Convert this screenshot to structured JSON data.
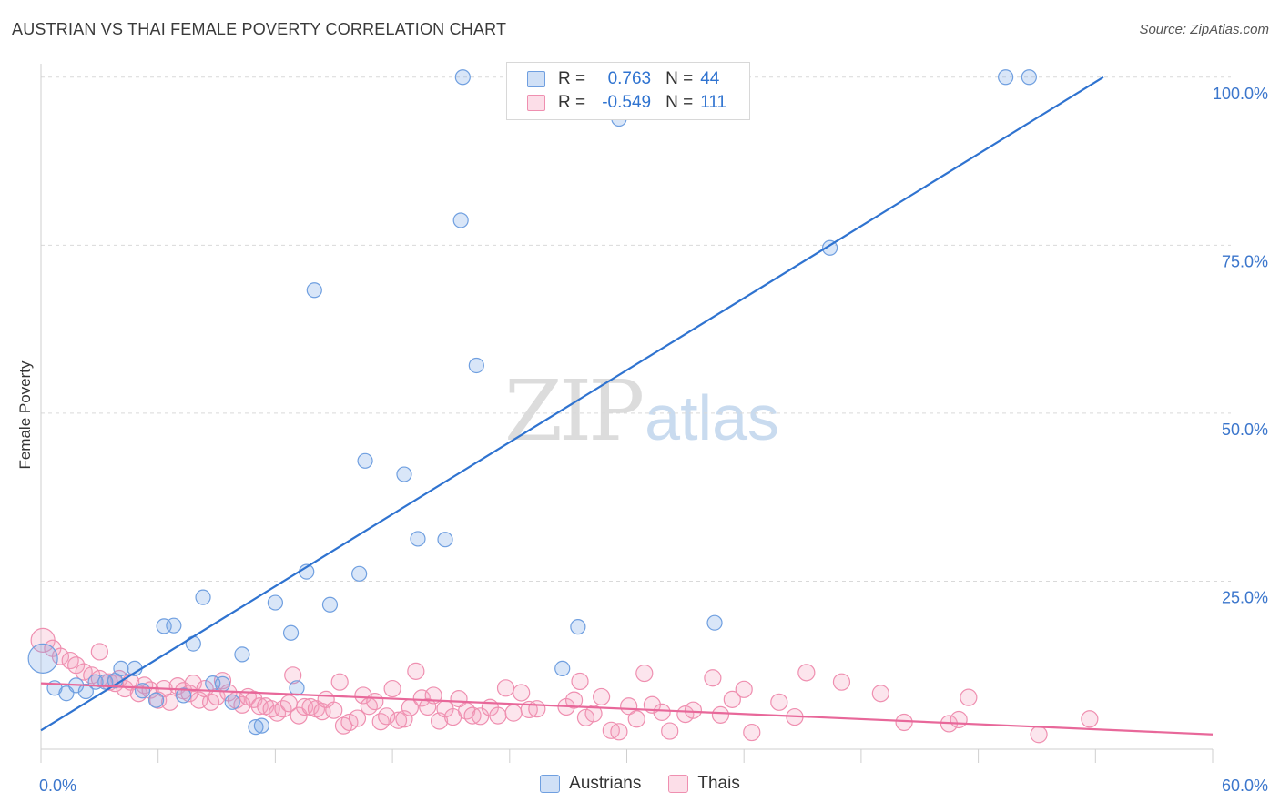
{
  "title": "AUSTRIAN VS THAI FEMALE POVERTY CORRELATION CHART",
  "source": "Source: ZipAtlas.com",
  "colors": {
    "austrians_fill": "rgba(120,165,230,0.28)",
    "austrians_stroke": "#6f9fe0",
    "austrians_line": "#2f73d0",
    "thais_fill": "rgba(245,160,190,0.28)",
    "thais_stroke": "#ef8fb0",
    "thais_line": "#e8689a",
    "tick_label": "#3b76cc",
    "grid": "#d9d9d9"
  },
  "legend": {
    "r_label": "R =",
    "n_label": "N =",
    "rows": [
      {
        "r": "0.763",
        "n": "44"
      },
      {
        "r": "-0.549",
        "n": "111"
      }
    ]
  },
  "watermark": {
    "zip": "ZIP",
    "atlas": "atlas"
  },
  "chart_data": {
    "type": "scatter",
    "title": "AUSTRIAN VS THAI FEMALE POVERTY CORRELATION CHART",
    "xlabel": "",
    "ylabel": "Female Poverty",
    "xlim": [
      0,
      60
    ],
    "ylim": [
      0,
      102
    ],
    "x_tick_labels": [
      "0.0%",
      "60.0%"
    ],
    "y_ticks": [
      25,
      50,
      75,
      100
    ],
    "y_tick_labels": [
      "25.0%",
      "50.0%",
      "75.0%",
      "100.0%"
    ],
    "grid": true,
    "legend_position": "top-center",
    "series": [
      {
        "name": "Austrians",
        "r": 0.763,
        "n": 44,
        "trend": [
          [
            0,
            2.8
          ],
          [
            54.4,
            100
          ]
        ],
        "points": [
          [
            0.1,
            13.5
          ],
          [
            0.7,
            9.1
          ],
          [
            1.3,
            8.3
          ],
          [
            1.8,
            9.5
          ],
          [
            2.3,
            8.6
          ],
          [
            2.8,
            10.0
          ],
          [
            3.3,
            10.0
          ],
          [
            3.8,
            10.2
          ],
          [
            4.1,
            12.0
          ],
          [
            4.8,
            12.0
          ],
          [
            5.2,
            8.7
          ],
          [
            5.9,
            7.3
          ],
          [
            6.3,
            18.3
          ],
          [
            6.8,
            18.4
          ],
          [
            7.3,
            8.0
          ],
          [
            7.8,
            15.7
          ],
          [
            8.3,
            22.6
          ],
          [
            8.8,
            9.8
          ],
          [
            9.3,
            9.7
          ],
          [
            9.8,
            7.0
          ],
          [
            10.3,
            14.1
          ],
          [
            11.0,
            3.3
          ],
          [
            11.3,
            3.5
          ],
          [
            12.0,
            21.8
          ],
          [
            12.8,
            17.3
          ],
          [
            13.1,
            9.1
          ],
          [
            13.6,
            26.4
          ],
          [
            14.0,
            68.3
          ],
          [
            14.8,
            21.5
          ],
          [
            16.3,
            26.1
          ],
          [
            16.6,
            42.9
          ],
          [
            18.6,
            40.9
          ],
          [
            19.3,
            31.3
          ],
          [
            20.7,
            31.2
          ],
          [
            21.5,
            78.7
          ],
          [
            21.6,
            100.0
          ],
          [
            22.3,
            57.1
          ],
          [
            26.7,
            12.0
          ],
          [
            27.5,
            18.2
          ],
          [
            29.6,
            93.8
          ],
          [
            34.5,
            18.8
          ],
          [
            40.4,
            74.6
          ],
          [
            49.4,
            100.0
          ],
          [
            50.6,
            100.0
          ]
        ]
      },
      {
        "name": "Thais",
        "r": -0.549,
        "n": 111,
        "trend": [
          [
            0,
            9.8
          ],
          [
            60,
            2.2
          ]
        ],
        "points": [
          [
            0.1,
            16.2
          ],
          [
            0.6,
            15.0
          ],
          [
            1.0,
            13.8
          ],
          [
            1.5,
            13.2
          ],
          [
            1.8,
            12.5
          ],
          [
            2.2,
            11.5
          ],
          [
            2.6,
            11.0
          ],
          [
            3.0,
            10.5
          ],
          [
            3.0,
            14.5
          ],
          [
            3.5,
            10.0
          ],
          [
            3.8,
            9.8
          ],
          [
            4.0,
            10.5
          ],
          [
            4.3,
            9.0
          ],
          [
            4.6,
            10.0
          ],
          [
            5.0,
            8.3
          ],
          [
            5.3,
            9.5
          ],
          [
            5.6,
            8.8
          ],
          [
            6.0,
            7.3
          ],
          [
            6.3,
            9.0
          ],
          [
            6.6,
            7.0
          ],
          [
            7.0,
            9.4
          ],
          [
            7.3,
            8.7
          ],
          [
            7.6,
            8.3
          ],
          [
            7.8,
            9.8
          ],
          [
            8.1,
            7.3
          ],
          [
            8.4,
            9.0
          ],
          [
            8.7,
            7.0
          ],
          [
            9.0,
            7.8
          ],
          [
            9.3,
            10.2
          ],
          [
            9.6,
            8.4
          ],
          [
            10.0,
            7.3
          ],
          [
            10.3,
            6.6
          ],
          [
            10.6,
            7.8
          ],
          [
            10.9,
            7.4
          ],
          [
            11.2,
            6.4
          ],
          [
            11.5,
            6.4
          ],
          [
            11.8,
            6.0
          ],
          [
            12.1,
            5.4
          ],
          [
            12.4,
            6.0
          ],
          [
            12.7,
            6.8
          ],
          [
            12.9,
            11.0
          ],
          [
            13.2,
            5.0
          ],
          [
            13.5,
            6.3
          ],
          [
            13.8,
            6.3
          ],
          [
            14.1,
            6.0
          ],
          [
            14.4,
            5.6
          ],
          [
            14.6,
            7.4
          ],
          [
            15.0,
            5.8
          ],
          [
            15.3,
            10.0
          ],
          [
            15.5,
            3.5
          ],
          [
            15.8,
            4.0
          ],
          [
            16.2,
            4.6
          ],
          [
            16.5,
            8.0
          ],
          [
            16.8,
            6.4
          ],
          [
            17.1,
            7.1
          ],
          [
            17.4,
            4.1
          ],
          [
            17.7,
            4.9
          ],
          [
            18.0,
            9.0
          ],
          [
            18.3,
            4.3
          ],
          [
            18.6,
            4.5
          ],
          [
            18.9,
            6.2
          ],
          [
            19.2,
            11.6
          ],
          [
            19.5,
            7.6
          ],
          [
            19.8,
            6.3
          ],
          [
            20.1,
            8.0
          ],
          [
            20.4,
            4.2
          ],
          [
            20.7,
            6.0
          ],
          [
            21.1,
            4.8
          ],
          [
            21.4,
            7.5
          ],
          [
            21.8,
            5.7
          ],
          [
            22.1,
            5.0
          ],
          [
            22.5,
            4.9
          ],
          [
            23.0,
            6.2
          ],
          [
            23.4,
            5.0
          ],
          [
            23.8,
            9.1
          ],
          [
            24.2,
            5.4
          ],
          [
            24.6,
            8.4
          ],
          [
            25.0,
            5.9
          ],
          [
            25.4,
            6.0
          ],
          [
            26.9,
            6.3
          ],
          [
            27.3,
            7.3
          ],
          [
            27.6,
            10.1
          ],
          [
            27.9,
            4.7
          ],
          [
            28.3,
            5.3
          ],
          [
            28.7,
            7.8
          ],
          [
            29.2,
            2.8
          ],
          [
            29.6,
            2.6
          ],
          [
            30.1,
            6.4
          ],
          [
            30.5,
            4.5
          ],
          [
            30.9,
            11.3
          ],
          [
            31.3,
            6.6
          ],
          [
            31.8,
            5.5
          ],
          [
            32.2,
            2.7
          ],
          [
            33.0,
            5.2
          ],
          [
            33.4,
            5.8
          ],
          [
            34.4,
            10.6
          ],
          [
            34.8,
            5.1
          ],
          [
            35.4,
            7.4
          ],
          [
            36.0,
            8.9
          ],
          [
            36.4,
            2.5
          ],
          [
            37.8,
            7.0
          ],
          [
            38.6,
            4.8
          ],
          [
            39.2,
            11.4
          ],
          [
            41.0,
            10.0
          ],
          [
            43.0,
            8.3
          ],
          [
            44.2,
            4.0
          ],
          [
            46.5,
            3.8
          ],
          [
            47.0,
            4.4
          ],
          [
            47.5,
            7.7
          ],
          [
            51.1,
            2.2
          ],
          [
            53.7,
            4.5
          ]
        ]
      }
    ]
  }
}
